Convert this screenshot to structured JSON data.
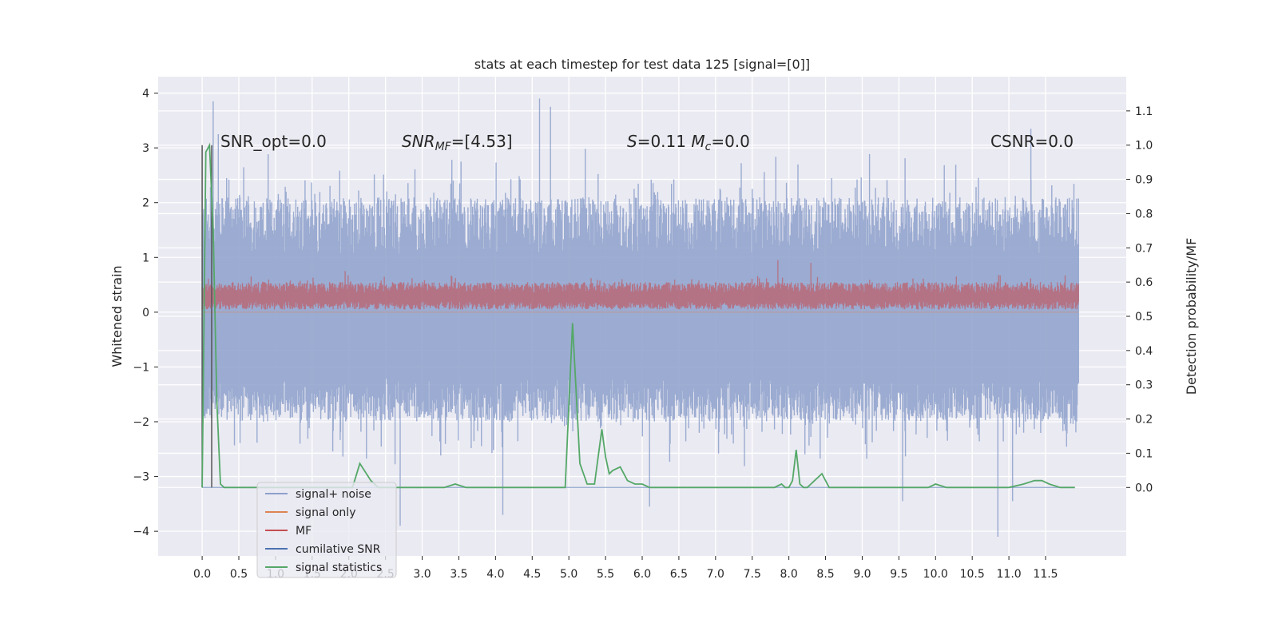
{
  "chart_data": {
    "type": "line",
    "title": "stats at each timestep for test data 125 [signal=[0]]",
    "ylabel_left": "Whitened strain",
    "ylabel_right": "Detection probability/MF",
    "xlabel": "",
    "xlim": [
      -0.6,
      12.6
    ],
    "ylim_left": [
      -4.45,
      4.3
    ],
    "ylim_right": [
      -0.2,
      1.2
    ],
    "x_ticks": [
      0.0,
      0.5,
      1.0,
      1.5,
      2.0,
      2.5,
      3.0,
      3.5,
      4.0,
      4.5,
      5.0,
      5.5,
      6.0,
      6.5,
      7.0,
      7.5,
      8.0,
      8.5,
      9.0,
      9.5,
      10.0,
      10.5,
      11.0,
      11.5
    ],
    "x_tick_labels": [
      "0.0",
      "0.5",
      "1.0",
      "1.5",
      "2.0",
      "2.5",
      "3.0",
      "3.5",
      "4.0",
      "4.5",
      "5.0",
      "5.5",
      "6.0",
      "6.5",
      "7.0",
      "7.5",
      "8.0",
      "8.5",
      "9.0",
      "9.5",
      "10.0",
      "10.5",
      "11.0",
      "11.5"
    ],
    "y_left_ticks": [
      -4,
      -3,
      -2,
      -1,
      0,
      1,
      2,
      3,
      4
    ],
    "y_left_tick_labels": [
      "−4",
      "−3",
      "−2",
      "−1",
      "0",
      "1",
      "2",
      "3",
      "4"
    ],
    "y_right_ticks": [
      0.0,
      0.1,
      0.2,
      0.3,
      0.4,
      0.5,
      0.6,
      0.7,
      0.8,
      0.9,
      1.0,
      1.1
    ],
    "y_right_tick_labels": [
      "0.0",
      "0.1",
      "0.2",
      "0.3",
      "0.4",
      "0.5",
      "0.6",
      "0.7",
      "0.8",
      "0.9",
      "1.0",
      "1.1"
    ],
    "grid": true,
    "background": "#eaeaf2",
    "annotations": [
      {
        "segments": [
          {
            "t": "SNR_opt=0.0",
            "i": false
          }
        ]
      },
      {
        "segments": [
          {
            "t": "SNR",
            "i": true
          },
          {
            "t": "MF",
            "i": true,
            "sub": true
          },
          {
            "t": "=[4.53]",
            "i": false
          }
        ]
      },
      {
        "segments": [
          {
            "t": "S",
            "i": true
          },
          {
            "t": "=0.11   ",
            "i": false
          },
          {
            "t": "M",
            "i": true
          },
          {
            "t": "c",
            "i": true,
            "sub": true
          },
          {
            "t": "=0.0",
            "i": false
          }
        ]
      },
      {
        "segments": [
          {
            "t": "CSNR=0.0",
            "i": false
          }
        ]
      }
    ],
    "vlines_x": [
      0.0,
      0.13
    ],
    "legend_position": "lower-left",
    "series": [
      {
        "name": "signal+ noise",
        "axis": "left",
        "color": "#8da0cb",
        "style": "dense-noise",
        "x_range": [
          0.0,
          11.95
        ],
        "envelope_typical": [
          -2.0,
          2.1
        ],
        "extremes": [
          {
            "x": 0.15,
            "y": 3.85
          },
          {
            "x": 0.22,
            "y": 3.25
          },
          {
            "x": 2.7,
            "y": -3.9
          },
          {
            "x": 4.1,
            "y": -3.7
          },
          {
            "x": 4.6,
            "y": 3.9
          },
          {
            "x": 4.75,
            "y": 3.75
          },
          {
            "x": 6.1,
            "y": -3.55
          },
          {
            "x": 9.55,
            "y": -3.45
          },
          {
            "x": 10.85,
            "y": -4.1
          },
          {
            "x": 11.05,
            "y": -3.45
          },
          {
            "x": 11.3,
            "y": 3.35
          }
        ]
      },
      {
        "name": "signal only",
        "axis": "left",
        "color": "#dd8452",
        "style": "flat",
        "values_summary": "approximately 0 throughout"
      },
      {
        "name": "MF",
        "axis": "left",
        "color": "#c44e52",
        "style": "band",
        "x_range": [
          0.0,
          11.95
        ],
        "band_typical": [
          0.05,
          0.55
        ],
        "peaks": [
          {
            "x": 1.95,
            "y": 0.75
          },
          {
            "x": 7.85,
            "y": 0.95
          },
          {
            "x": 8.3,
            "y": 0.9
          }
        ]
      },
      {
        "name": "cumilative SNR",
        "axis": "right",
        "color": "#4c72b0",
        "style": "flat",
        "values_summary": "0 throughout"
      },
      {
        "name": "signal statistics",
        "axis": "right",
        "color": "#55a868",
        "x": [
          0.0,
          0.05,
          0.1,
          0.15,
          0.2,
          0.25,
          0.3,
          2.05,
          2.15,
          2.3,
          2.4,
          3.3,
          3.45,
          3.6,
          4.95,
          5.05,
          5.15,
          5.25,
          5.35,
          5.45,
          5.5,
          5.55,
          5.6,
          5.7,
          5.8,
          5.9,
          6.0,
          6.1,
          6.2,
          7.8,
          7.9,
          7.95,
          8.0,
          8.05,
          8.1,
          8.15,
          8.2,
          8.25,
          8.35,
          8.45,
          8.55,
          8.7,
          9.0,
          9.9,
          10.0,
          10.15,
          10.25,
          10.35,
          11.0,
          11.2,
          11.35,
          11.45,
          11.55,
          11.7,
          11.9
        ],
        "y": [
          0.0,
          0.98,
          1.0,
          0.75,
          0.25,
          0.01,
          0.0,
          0.0,
          0.07,
          0.02,
          0.0,
          0.0,
          0.01,
          0.0,
          0.0,
          0.48,
          0.07,
          0.01,
          0.01,
          0.17,
          0.09,
          0.04,
          0.05,
          0.06,
          0.02,
          0.01,
          0.01,
          0.0,
          0.0,
          0.0,
          0.01,
          0.0,
          0.0,
          0.02,
          0.11,
          0.01,
          0.0,
          0.0,
          0.02,
          0.04,
          0.0,
          0.0,
          0.0,
          0.0,
          0.01,
          0.0,
          0.0,
          0.0,
          0.0,
          0.01,
          0.02,
          0.02,
          0.01,
          0.0,
          0.0
        ]
      }
    ]
  }
}
